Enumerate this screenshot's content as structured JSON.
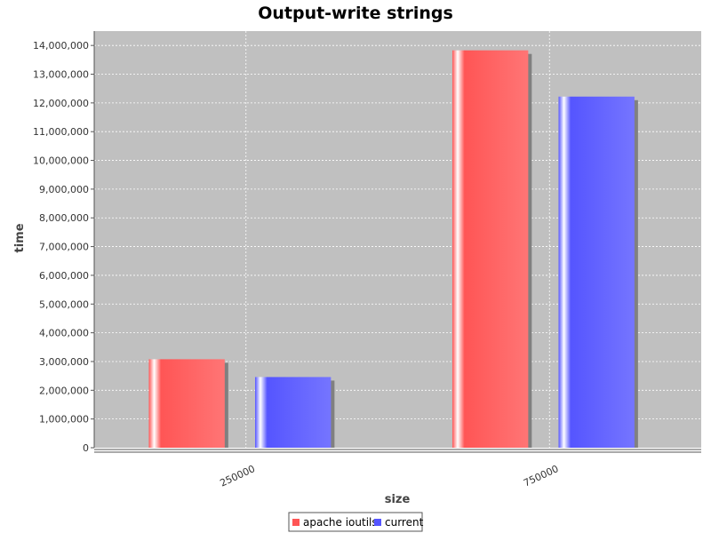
{
  "chart_data": {
    "type": "bar",
    "title": "Output-write strings",
    "xlabel": "size",
    "ylabel": "time",
    "categories": [
      "250000",
      "750000"
    ],
    "series": [
      {
        "name": "apache ioutils",
        "color": "#ff5555",
        "values": [
          3080000,
          13830000
        ]
      },
      {
        "name": "current",
        "color": "#5555ff",
        "values": [
          2460000,
          12220000
        ]
      }
    ],
    "ylim": [
      0,
      14500000
    ],
    "yticks": [
      0,
      1000000,
      2000000,
      3000000,
      4000000,
      5000000,
      6000000,
      7000000,
      8000000,
      9000000,
      10000000,
      11000000,
      12000000,
      13000000,
      14000000
    ],
    "ytick_labels": [
      "0",
      "1,000,000",
      "2,000,000",
      "3,000,000",
      "4,000,000",
      "5,000,000",
      "6,000,000",
      "7,000,000",
      "8,000,000",
      "9,000,000",
      "10,000,000",
      "11,000,000",
      "12,000,000",
      "13,000,000",
      "14,000,000"
    ],
    "grid": true,
    "legend_position": "bottom",
    "plot_background": "#c0c0c0"
  }
}
